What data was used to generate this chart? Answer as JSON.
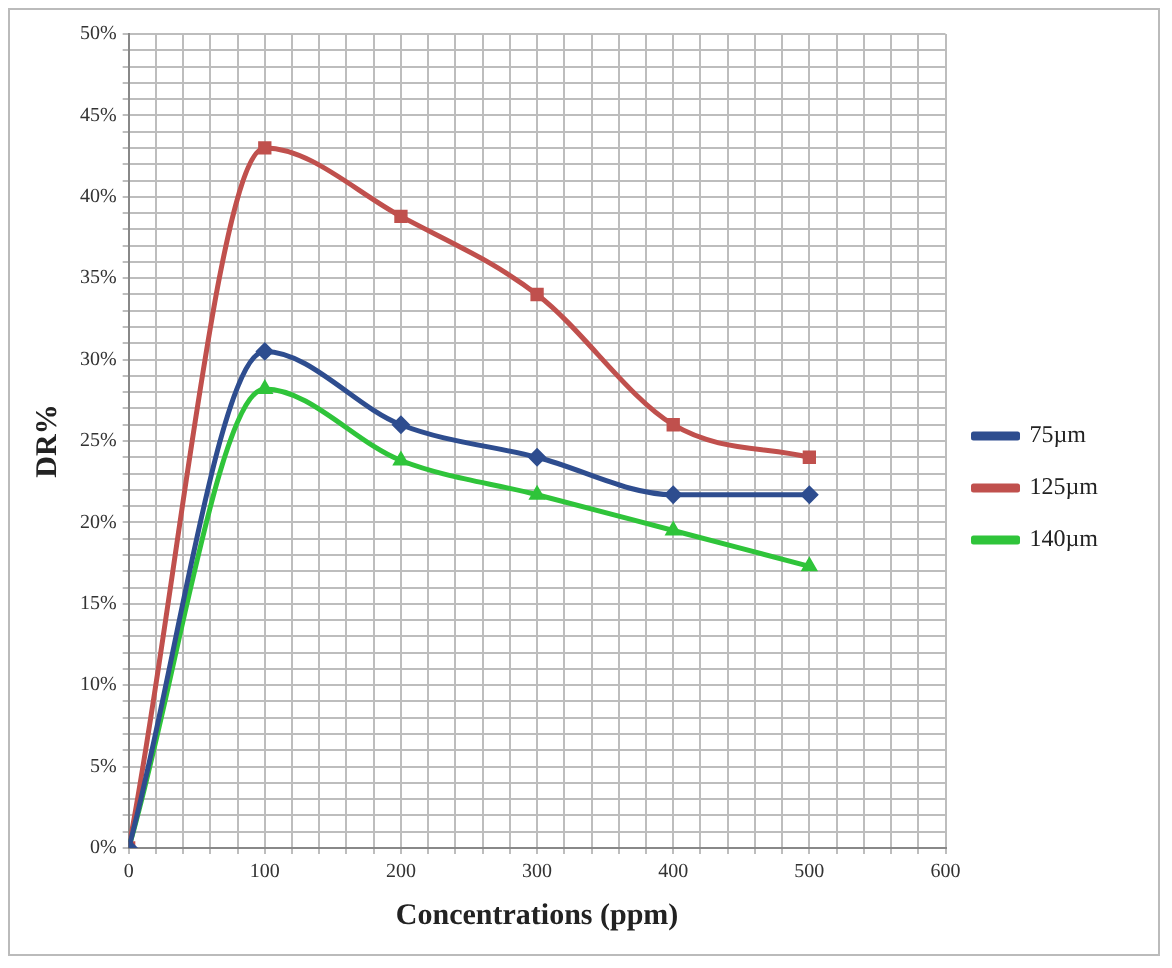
{
  "chart_data": {
    "type": "line",
    "xlabel": "Concentrations (ppm)",
    "ylabel": "DR%",
    "x": [
      0,
      100,
      200,
      300,
      400,
      500
    ],
    "series": [
      {
        "name": "75µm",
        "color": "#2e4d8f",
        "marker": "diamond",
        "values": [
          0,
          30.5,
          26,
          24,
          21.7,
          21.7
        ]
      },
      {
        "name": "125µm",
        "color": "#c0504d",
        "marker": "square",
        "values": [
          0,
          43,
          38.8,
          34,
          26,
          24
        ]
      },
      {
        "name": "140µm",
        "color": "#2fc43a",
        "marker": "triangle",
        "values": [
          0,
          28.2,
          23.8,
          21.7,
          19.5,
          17.3
        ]
      }
    ],
    "xlim": [
      0,
      600
    ],
    "xticks": [
      0,
      {
        "value": 20,
        "label": null
      },
      {
        "value": 40,
        "label": null
      },
      {
        "value": 60,
        "label": null
      },
      {
        "value": 80,
        "label": null
      },
      100,
      {
        "value": 120,
        "label": null
      },
      {
        "value": 140,
        "label": null
      },
      {
        "value": 160,
        "label": null
      },
      {
        "value": 180,
        "label": null
      },
      200,
      {
        "value": 220,
        "label": null
      },
      {
        "value": 240,
        "label": null
      },
      {
        "value": 260,
        "label": null
      },
      {
        "value": 280,
        "label": null
      },
      300,
      {
        "value": 320,
        "label": null
      },
      {
        "value": 340,
        "label": null
      },
      {
        "value": 360,
        "label": null
      },
      {
        "value": 380,
        "label": null
      },
      400,
      {
        "value": 420,
        "label": null
      },
      {
        "value": 440,
        "label": null
      },
      {
        "value": 460,
        "label": null
      },
      {
        "value": 480,
        "label": null
      },
      500,
      {
        "value": 520,
        "label": null
      },
      {
        "value": 540,
        "label": null
      },
      {
        "value": 560,
        "label": null
      },
      {
        "value": 580,
        "label": null
      },
      600
    ],
    "ylim": [
      0,
      50
    ],
    "yticks": [
      {
        "value": 0,
        "label": "0%"
      },
      {
        "value": 1,
        "label": null
      },
      {
        "value": 2,
        "label": null
      },
      {
        "value": 3,
        "label": null
      },
      {
        "value": 4,
        "label": null
      },
      {
        "value": 5,
        "label": "5%"
      },
      {
        "value": 6,
        "label": null
      },
      {
        "value": 7,
        "label": null
      },
      {
        "value": 8,
        "label": null
      },
      {
        "value": 9,
        "label": null
      },
      {
        "value": 10,
        "label": "10%"
      },
      {
        "value": 11,
        "label": null
      },
      {
        "value": 12,
        "label": null
      },
      {
        "value": 13,
        "label": null
      },
      {
        "value": 14,
        "label": null
      },
      {
        "value": 15,
        "label": "15%"
      },
      {
        "value": 16,
        "label": null
      },
      {
        "value": 17,
        "label": null
      },
      {
        "value": 18,
        "label": null
      },
      {
        "value": 19,
        "label": null
      },
      {
        "value": 20,
        "label": "20%"
      },
      {
        "value": 21,
        "label": null
      },
      {
        "value": 22,
        "label": null
      },
      {
        "value": 23,
        "label": null
      },
      {
        "value": 24,
        "label": null
      },
      {
        "value": 25,
        "label": "25%"
      },
      {
        "value": 26,
        "label": null
      },
      {
        "value": 27,
        "label": null
      },
      {
        "value": 28,
        "label": null
      },
      {
        "value": 29,
        "label": null
      },
      {
        "value": 30,
        "label": "30%"
      },
      {
        "value": 31,
        "label": null
      },
      {
        "value": 32,
        "label": null
      },
      {
        "value": 33,
        "label": null
      },
      {
        "value": 34,
        "label": null
      },
      {
        "value": 35,
        "label": "35%"
      },
      {
        "value": 36,
        "label": null
      },
      {
        "value": 37,
        "label": null
      },
      {
        "value": 38,
        "label": null
      },
      {
        "value": 39,
        "label": null
      },
      {
        "value": 40,
        "label": "40%"
      },
      {
        "value": 41,
        "label": null
      },
      {
        "value": 42,
        "label": null
      },
      {
        "value": 43,
        "label": null
      },
      {
        "value": 44,
        "label": null
      },
      {
        "value": 45,
        "label": "45%"
      },
      {
        "value": 46,
        "label": null
      },
      {
        "value": 47,
        "label": null
      },
      {
        "value": 48,
        "label": null
      },
      {
        "value": 49,
        "label": null
      },
      {
        "value": 50,
        "label": "50%"
      }
    ],
    "grid": true,
    "legend": "right"
  }
}
